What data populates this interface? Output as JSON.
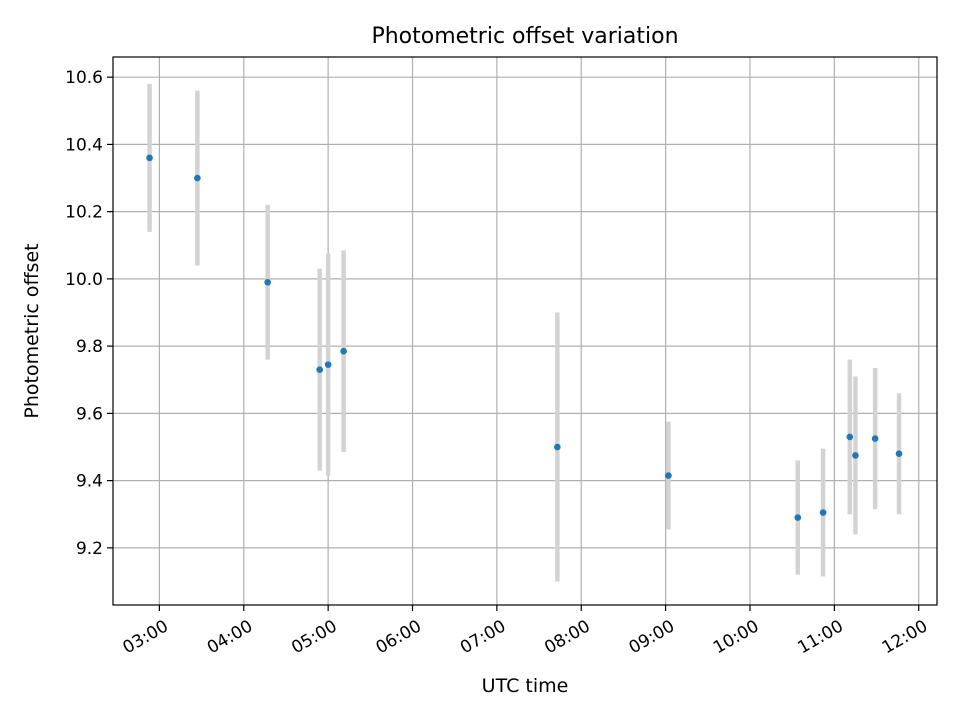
{
  "chart_data": {
    "type": "scatter",
    "title": "Photometric offset variation",
    "xlabel": "UTC time",
    "ylabel": "Photometric offset",
    "x_ticks": [
      "03:00",
      "04:00",
      "05:00",
      "06:00",
      "07:00",
      "08:00",
      "09:00",
      "10:00",
      "11:00",
      "12:00"
    ],
    "y_ticks": [
      9.2,
      9.4,
      9.6,
      9.8,
      10.0,
      10.2,
      10.4,
      10.6
    ],
    "xlim": [
      "02:27",
      "12:13"
    ],
    "ylim": [
      9.03,
      10.66
    ],
    "grid": true,
    "legend": "none",
    "point_color": "#1f77b4",
    "errorbar_color": "#d3d3d3",
    "points": [
      {
        "time": "02:53",
        "y": 10.36,
        "err": 0.22
      },
      {
        "time": "03:27",
        "y": 10.3,
        "err": 0.26
      },
      {
        "time": "04:17",
        "y": 9.99,
        "err": 0.23
      },
      {
        "time": "04:54",
        "y": 9.73,
        "err": 0.3
      },
      {
        "time": "05:00",
        "y": 9.745,
        "err": 0.33
      },
      {
        "time": "05:11",
        "y": 9.785,
        "err": 0.3
      },
      {
        "time": "07:43",
        "y": 9.5,
        "err": 0.4
      },
      {
        "time": "09:02",
        "y": 9.415,
        "err": 0.16
      },
      {
        "time": "10:34",
        "y": 9.29,
        "err": 0.17
      },
      {
        "time": "10:52",
        "y": 9.305,
        "err": 0.19
      },
      {
        "time": "11:11",
        "y": 9.53,
        "err": 0.23
      },
      {
        "time": "11:15",
        "y": 9.475,
        "err": 0.235
      },
      {
        "time": "11:29",
        "y": 9.525,
        "err": 0.21
      },
      {
        "time": "11:46",
        "y": 9.48,
        "err": 0.18
      }
    ]
  }
}
